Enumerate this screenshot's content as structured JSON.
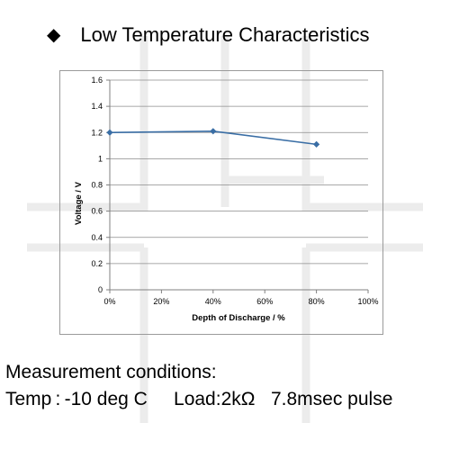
{
  "header": {
    "bullet": "◆",
    "title": "Low Temperature Characteristics"
  },
  "chart_data": {
    "type": "line",
    "title": "",
    "xlabel": "Depth of Discharge / %",
    "ylabel": "Voltage  /  V",
    "x_ticks": [
      "0%",
      "20%",
      "40%",
      "60%",
      "80%",
      "100%"
    ],
    "y_ticks": [
      "0",
      "0.2",
      "0.4",
      "0.6",
      "0.8",
      "1",
      "1.2",
      "1.4",
      "1.6"
    ],
    "xlim": [
      0,
      100
    ],
    "ylim": [
      0,
      1.6
    ],
    "grid": "horizontal",
    "legend": "none",
    "series": [
      {
        "x": [
          0,
          40,
          80
        ],
        "y": [
          1.2,
          1.21,
          1.11
        ],
        "color": "#3a6ea5",
        "marker": "diamond"
      }
    ]
  },
  "conditions": {
    "line1": "Measurement conditions:",
    "temp": "Temp : -10 deg C",
    "load": "Load:2kΩ",
    "pulse": "7.8msec pulse"
  },
  "watermark": {
    "color": "#e9e9e9"
  }
}
